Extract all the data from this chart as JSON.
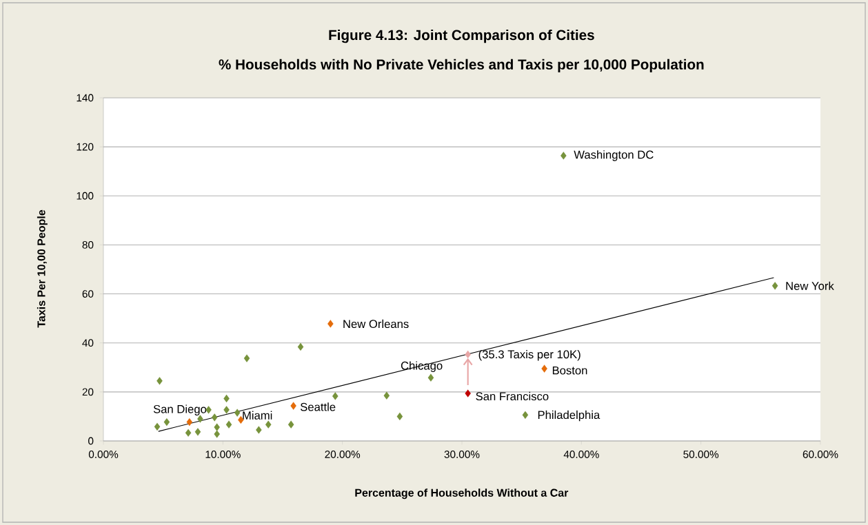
{
  "chart_data": {
    "type": "scatter",
    "title": "Figure 4.13: Joint Comparison of Cities",
    "subtitle": "% Households with No Private Vehicles and Taxis per 10,000 Population",
    "xlabel": "Percentage of Households Without a Car",
    "ylabel": "Taxis Per 10,00 People",
    "xlim": [
      0,
      60
    ],
    "ylim": [
      0,
      140
    ],
    "xticks": [
      {
        "value": 0,
        "label": "0.00%"
      },
      {
        "value": 10,
        "label": "10.00%"
      },
      {
        "value": 20,
        "label": "20.00%"
      },
      {
        "value": 30,
        "label": "30.00%"
      },
      {
        "value": 40,
        "label": "40.00%"
      },
      {
        "value": 50,
        "label": "50.00%"
      },
      {
        "value": 60,
        "label": "60.00%"
      }
    ],
    "yticks": [
      0,
      20,
      40,
      60,
      80,
      100,
      120,
      140
    ],
    "grid": "y",
    "marker": "diamond",
    "series": [
      {
        "color": "#77933c",
        "x": [
          4.7,
          5.3,
          4.5,
          7.1,
          7.9,
          8.1,
          8.8,
          9.3,
          9.5,
          9.5,
          10.3,
          10.3,
          10.5,
          11.2,
          12.0,
          13.0,
          13.8,
          15.7,
          16.5,
          19.4,
          24.8,
          23.7,
          27.4,
          35.3,
          38.5,
          56.2
        ],
        "values": [
          24.5,
          7.7,
          5.8,
          3.3,
          3.7,
          9.0,
          12.7,
          9.6,
          5.6,
          2.8,
          17.3,
          12.7,
          6.7,
          11.5,
          33.7,
          4.5,
          6.7,
          6.7,
          38.4,
          18.3,
          10.0,
          18.5,
          25.8,
          10.6,
          116.4,
          63.3
        ]
      },
      {
        "color": "#e46c0a",
        "x": [
          7.2,
          11.5,
          15.9,
          19.0,
          36.9
        ],
        "values": [
          7.7,
          8.6,
          14.3,
          47.8,
          29.5
        ]
      },
      {
        "color": "#c00000",
        "x": [
          30.5
        ],
        "values": [
          19.4
        ]
      },
      {
        "color": "#e8a6a6",
        "x": [
          30.5
        ],
        "values": [
          35.3
        ]
      },
      {
        "type": "line",
        "marker": "none",
        "color": "#000000",
        "x": [
          4.6,
          56.1
        ],
        "values": [
          3.9,
          66.6
        ]
      }
    ],
    "annotations": [
      {
        "text": "Washington DC",
        "x": 38.5,
        "y": 116.4
      },
      {
        "text": "New York",
        "x": 56.2,
        "y": 63.3
      },
      {
        "text": "New Orleans",
        "x": 19.0,
        "y": 47.8
      },
      {
        "text": "Chicago",
        "x": 27.4,
        "y": 25.8
      },
      {
        "text": "(35.3 Taxis per 10K)",
        "x": 30.5,
        "y": 35.3
      },
      {
        "text": "Boston",
        "x": 36.9,
        "y": 29.5
      },
      {
        "text": "San Francisco",
        "x": 30.5,
        "y": 19.4
      },
      {
        "text": "Seattle",
        "x": 15.9,
        "y": 14.3
      },
      {
        "text": "Philadelphia",
        "x": 35.3,
        "y": 10.6
      },
      {
        "text": "Miami",
        "x": 11.5,
        "y": 8.6
      },
      {
        "text": "San Diego",
        "x": 7.2,
        "y": 7.7
      }
    ]
  }
}
